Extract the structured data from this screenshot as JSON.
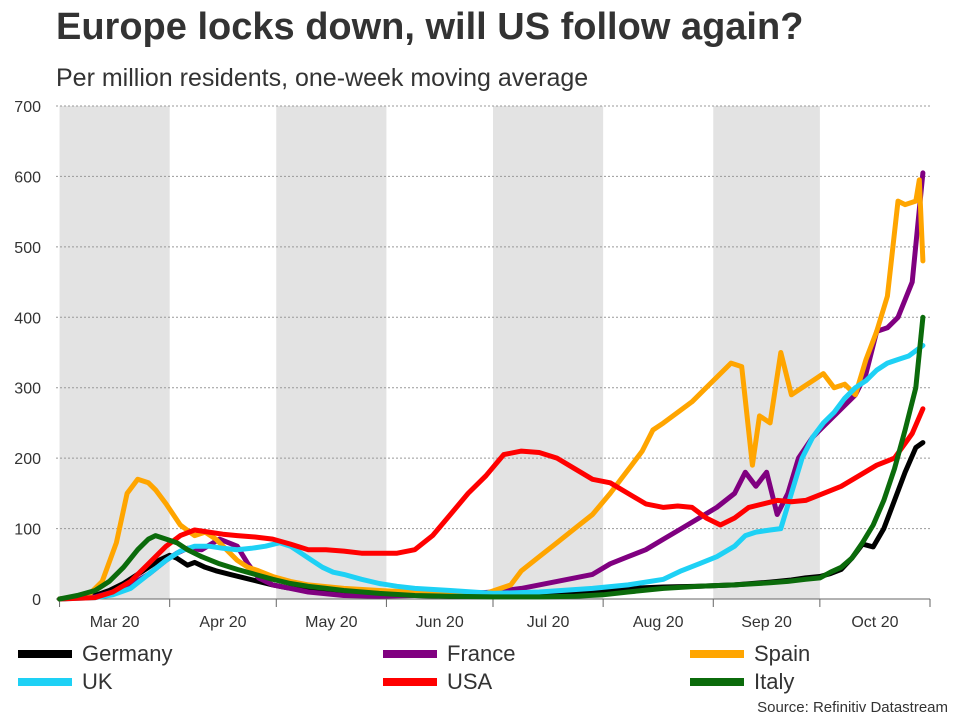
{
  "header": {
    "title": "Europe locks down, will US follow again?",
    "subtitle": "Per million residents, one-week moving average"
  },
  "source": "Source: Refinitiv Datastream",
  "colors": {
    "Germany": "#000000",
    "France": "#800080",
    "Spain": "#FFA500",
    "UK": "#1ED1F5",
    "USA": "#FF0000",
    "Italy": "#0B6B0B",
    "shade": "#E3E3E3",
    "grid": "#999999"
  },
  "chart_data": {
    "type": "line",
    "title": "Europe locks down, will US follow again?",
    "subtitle": "Per million residents, one-week moving average",
    "xlabel": "",
    "ylabel": "",
    "ylim": [
      0,
      700
    ],
    "yticks": [
      0,
      100,
      200,
      300,
      400,
      500,
      600,
      700
    ],
    "xticks": [
      "Mar 20",
      "Apr 20",
      "May 20",
      "Jun 20",
      "Jul 20",
      "Aug 20",
      "Sep 20",
      "Oct 20"
    ],
    "x_unit": "days since Mar 1 2020",
    "x_range": [
      -1,
      245
    ],
    "month_starts": [
      0,
      31,
      61,
      92,
      122,
      153,
      184,
      214,
      245
    ],
    "shaded_months": [
      "Mar 20",
      "May 20",
      "Jul 20",
      "Sep 20"
    ],
    "grid": true,
    "legend_position": "bottom",
    "series": [
      {
        "name": "Germany",
        "x": [
          0,
          5,
          10,
          14,
          18,
          22,
          25,
          28,
          31,
          33,
          36,
          38,
          41,
          44,
          48,
          52,
          56,
          60,
          64,
          70,
          75,
          80,
          85,
          90,
          100,
          110,
          122,
          135,
          150,
          160,
          170,
          180,
          190,
          200,
          206,
          210,
          214,
          217,
          220,
          223,
          226,
          229,
          232,
          235,
          238,
          241,
          243
        ],
        "values": [
          0,
          2,
          5,
          12,
          22,
          35,
          45,
          55,
          62,
          58,
          48,
          52,
          45,
          40,
          35,
          30,
          25,
          20,
          16,
          12,
          9,
          7,
          6,
          5,
          5,
          4,
          4,
          5,
          10,
          15,
          17,
          18,
          20,
          24,
          27,
          30,
          32,
          36,
          42,
          58,
          78,
          74,
          100,
          140,
          180,
          215,
          222
        ]
      },
      {
        "name": "France",
        "x": [
          0,
          10,
          15,
          20,
          25,
          30,
          33,
          36,
          40,
          45,
          50,
          53,
          56,
          60,
          65,
          70,
          80,
          90,
          100,
          110,
          122,
          130,
          140,
          150,
          155,
          160,
          165,
          170,
          175,
          180,
          185,
          190,
          193,
          196,
          199,
          202,
          205,
          208,
          212,
          216,
          220,
          224,
          227,
          230,
          233,
          236,
          240,
          243
        ],
        "values": [
          0,
          3,
          10,
          20,
          35,
          55,
          65,
          72,
          70,
          85,
          75,
          50,
          30,
          20,
          15,
          10,
          5,
          4,
          5,
          6,
          10,
          15,
          25,
          35,
          50,
          60,
          70,
          85,
          100,
          115,
          130,
          150,
          180,
          160,
          180,
          120,
          150,
          200,
          230,
          250,
          270,
          290,
          320,
          380,
          385,
          400,
          450,
          605
        ]
      },
      {
        "name": "Spain",
        "x": [
          0,
          8,
          12,
          16,
          19,
          22,
          25,
          27,
          30,
          34,
          38,
          41,
          44,
          47,
          50,
          53,
          56,
          60,
          65,
          70,
          80,
          90,
          100,
          110,
          120,
          127,
          130,
          135,
          140,
          145,
          150,
          155,
          158,
          161,
          164,
          167,
          170,
          174,
          178,
          182,
          186,
          189,
          192,
          195,
          197,
          200,
          203,
          206,
          209,
          212,
          215,
          218,
          221,
          224,
          227,
          230,
          233,
          236,
          238,
          241,
          242,
          243
        ],
        "values": [
          0,
          5,
          25,
          80,
          150,
          170,
          165,
          155,
          135,
          105,
          90,
          95,
          85,
          70,
          55,
          45,
          40,
          32,
          25,
          20,
          15,
          12,
          10,
          8,
          8,
          20,
          40,
          60,
          80,
          100,
          120,
          150,
          170,
          190,
          210,
          240,
          250,
          265,
          280,
          300,
          320,
          335,
          330,
          190,
          260,
          250,
          350,
          290,
          300,
          310,
          320,
          300,
          305,
          290,
          340,
          380,
          430,
          565,
          560,
          565,
          595,
          480
        ]
      },
      {
        "name": "UK",
        "x": [
          0,
          10,
          15,
          20,
          25,
          30,
          34,
          38,
          42,
          46,
          50,
          54,
          58,
          62,
          65,
          68,
          71,
          74,
          77,
          80,
          85,
          90,
          95,
          100,
          110,
          122,
          135,
          150,
          160,
          170,
          175,
          180,
          185,
          190,
          193,
          196,
          200,
          203,
          206,
          209,
          212,
          215,
          218,
          221,
          224,
          227,
          230,
          233,
          236,
          239,
          243
        ],
        "values": [
          0,
          2,
          6,
          15,
          35,
          55,
          68,
          75,
          75,
          72,
          70,
          72,
          75,
          80,
          75,
          65,
          55,
          45,
          38,
          35,
          28,
          22,
          18,
          15,
          12,
          8,
          10,
          15,
          20,
          28,
          40,
          50,
          60,
          75,
          90,
          95,
          98,
          100,
          150,
          200,
          230,
          250,
          265,
          285,
          300,
          310,
          325,
          335,
          340,
          345,
          360
        ]
      },
      {
        "name": "USA",
        "x": [
          0,
          10,
          15,
          20,
          25,
          30,
          34,
          38,
          42,
          46,
          50,
          55,
          60,
          65,
          70,
          75,
          80,
          85,
          90,
          95,
          100,
          105,
          110,
          115,
          120,
          125,
          130,
          135,
          140,
          145,
          150,
          155,
          160,
          165,
          170,
          174,
          178,
          182,
          186,
          190,
          194,
          198,
          202,
          206,
          210,
          215,
          220,
          225,
          230,
          235,
          240,
          243
        ],
        "values": [
          0,
          2,
          10,
          25,
          50,
          75,
          90,
          98,
          95,
          92,
          90,
          88,
          85,
          78,
          70,
          70,
          68,
          65,
          65,
          65,
          70,
          90,
          120,
          150,
          175,
          205,
          210,
          208,
          200,
          185,
          170,
          165,
          150,
          135,
          130,
          132,
          130,
          115,
          105,
          115,
          130,
          135,
          140,
          138,
          140,
          150,
          160,
          175,
          190,
          200,
          235,
          270
        ]
      },
      {
        "name": "Italy",
        "x": [
          0,
          5,
          10,
          14,
          18,
          22,
          25,
          27,
          30,
          33,
          36,
          40,
          45,
          50,
          55,
          60,
          65,
          70,
          75,
          80,
          90,
          100,
          110,
          122,
          135,
          145,
          153,
          160,
          170,
          180,
          190,
          200,
          205,
          210,
          214,
          217,
          220,
          223,
          226,
          229,
          232,
          235,
          238,
          241,
          243
        ],
        "values": [
          0,
          5,
          12,
          25,
          45,
          70,
          85,
          90,
          85,
          80,
          70,
          60,
          50,
          42,
          35,
          28,
          22,
          18,
          15,
          12,
          8,
          5,
          4,
          3,
          3,
          4,
          6,
          10,
          15,
          18,
          20,
          23,
          25,
          28,
          30,
          38,
          45,
          58,
          80,
          105,
          140,
          185,
          240,
          300,
          400
        ]
      }
    ]
  }
}
